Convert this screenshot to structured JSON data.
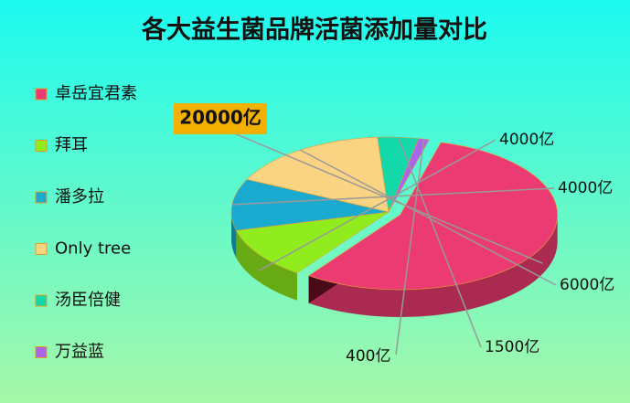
{
  "chart_data": {
    "type": "pie",
    "title": "各大益生菌品牌活菌添加量对比",
    "categories": [
      "卓岳宜君素",
      "拜耳",
      "潘多拉",
      "Only tree",
      "汤臣倍健",
      "万益蓝"
    ],
    "values": [
      20000,
      4000,
      4000,
      6000,
      1500,
      400
    ],
    "value_labels": [
      "20000亿",
      "4000亿",
      "4000亿",
      "6000亿",
      "1500亿",
      "400亿"
    ],
    "colors": [
      "#ec3a72",
      "#90ec1c",
      "#1aaad0",
      "#fad383",
      "#12d8aa",
      "#aa66ea"
    ],
    "legend": "left"
  }
}
